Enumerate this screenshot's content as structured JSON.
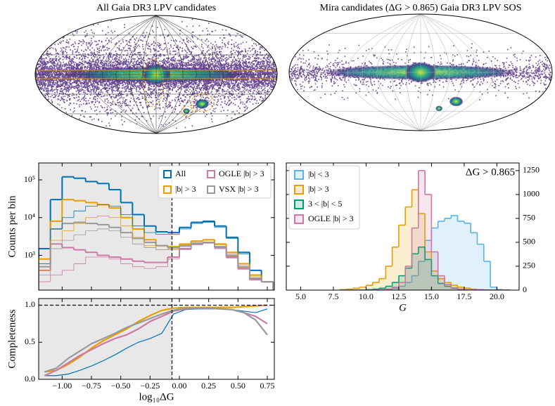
{
  "chart_data": [
    {
      "type": "skymap",
      "title": "All Gaia DR3 LPV candidates"
    },
    {
      "type": "skymap",
      "title": "Mira candidates (ΔG > 0.865) Gaia DR3 LPV SOS"
    },
    {
      "type": "histogram",
      "ylabel": "Counts per bin",
      "log_y": true,
      "legend": "upper right",
      "shaded_below_threshold": true,
      "threshold": -0.063,
      "xlim": [
        -1.2,
        0.81
      ],
      "ylim": [
        120,
        280000
      ],
      "yticks": [
        {
          "value": 1000,
          "label": "10³"
        },
        {
          "value": 10000,
          "label": "10⁴"
        },
        {
          "value": 100000,
          "label": "10⁵"
        }
      ],
      "bins": [
        -1.2,
        -1.1,
        -1.0,
        -0.9,
        -0.8,
        -0.7,
        -0.6,
        -0.5,
        -0.4,
        -0.3,
        -0.2,
        -0.1,
        0.0,
        0.1,
        0.2,
        0.3,
        0.4,
        0.5,
        0.6,
        0.7,
        0.8
      ],
      "series": [
        {
          "name": "All",
          "color": "#0072b2",
          "linewidth": 2,
          "values": [
            1500,
            30000,
            120000,
            110000,
            90000,
            80000,
            55000,
            25000,
            12000,
            6000,
            4200,
            4000,
            5500,
            7500,
            8000,
            6000,
            3000,
            1200,
            400,
            200
          ]
        },
        {
          "name": "|b| > 3",
          "color": "#e69f00",
          "linewidth": 2,
          "values": [
            800,
            8000,
            30000,
            28000,
            25000,
            22000,
            18000,
            10000,
            5000,
            2600,
            1800,
            1700,
            2000,
            2400,
            2600,
            2000,
            1200,
            600,
            300,
            200
          ]
        },
        {
          "name": "OGLE |b| > 3",
          "color": "#cc79a7",
          "linewidth": 2,
          "values": [
            400,
            2000,
            1600,
            1400,
            1200,
            1000,
            900,
            800,
            700,
            650,
            650,
            900,
            1500,
            2000,
            2200,
            1600,
            900,
            450,
            230,
            200
          ]
        },
        {
          "name": "VSX |b| > 3",
          "color": "#999999",
          "linewidth": 2,
          "values": [
            500,
            5000,
            7000,
            7500,
            7000,
            6500,
            5500,
            4000,
            2800,
            2200,
            1800,
            1600,
            1800,
            2100,
            2200,
            1700,
            1000,
            500,
            250,
            200
          ]
        },
        {
          "color": "#0072b2",
          "linewidth": 0.8,
          "values": [
            600,
            5000,
            10000,
            15000,
            20000,
            22000,
            20000,
            12000,
            6000,
            4000,
            3600,
            3600,
            5000,
            7000,
            7500,
            5500,
            2800,
            1100,
            400,
            200
          ]
        },
        {
          "color": "#e69f00",
          "linewidth": 0.8,
          "values": [
            400,
            2500,
            4500,
            7000,
            10000,
            11000,
            10000,
            6000,
            3000,
            1800,
            1400,
            1500,
            1900,
            2300,
            2500,
            1900,
            1100,
            550,
            280,
            200
          ]
        },
        {
          "color": "#cc79a7",
          "linewidth": 0.8,
          "values": [
            200,
            300,
            400,
            600,
            900,
            900,
            800,
            600,
            500,
            450,
            500,
            800,
            1400,
            1900,
            2100,
            1500,
            850,
            420,
            220,
            200
          ]
        },
        {
          "color": "#999999",
          "linewidth": 0.8,
          "values": [
            300,
            1500,
            2500,
            3500,
            4500,
            5000,
            4500,
            3000,
            2000,
            1600,
            1400,
            1400,
            1700,
            2000,
            2100,
            1600,
            950,
            480,
            240,
            200
          ]
        }
      ]
    },
    {
      "type": "line",
      "ylabel": "Completeness",
      "xlabel": "log₁₀ΔG",
      "shaded_below_threshold": true,
      "threshold": -0.063,
      "reference_line": 1.0,
      "xlim": [
        -1.2,
        0.81
      ],
      "ylim": [
        0,
        1.09
      ],
      "xticks": [
        {
          "value": -1.0,
          "label": "−1.00"
        },
        {
          "value": -0.75,
          "label": "−0.75"
        },
        {
          "value": -0.5,
          "label": "−0.50"
        },
        {
          "value": -0.25,
          "label": "−0.25"
        },
        {
          "value": 0.0,
          "label": "0.00"
        },
        {
          "value": 0.25,
          "label": "0.25"
        },
        {
          "value": 0.5,
          "label": "0.50"
        },
        {
          "value": 0.75,
          "label": "0.75"
        }
      ],
      "yticks": [
        {
          "value": 0.0,
          "label": "0.0"
        },
        0.5,
        {
          "value": 1.0,
          "label": "1.0"
        }
      ],
      "x": [
        -1.15,
        -1.05,
        -0.95,
        -0.85,
        -0.75,
        -0.65,
        -0.55,
        -0.45,
        -0.35,
        -0.25,
        -0.15,
        -0.05,
        0.05,
        0.15,
        0.25,
        0.35,
        0.45,
        0.55,
        0.65,
        0.75
      ],
      "series": [
        {
          "color": "#e69f00",
          "values": [
            0.1,
            0.12,
            0.2,
            0.3,
            0.42,
            0.52,
            0.6,
            0.68,
            0.78,
            0.86,
            0.93,
            0.96,
            0.97,
            0.97,
            0.97,
            0.97,
            0.97,
            0.98,
            0.99,
            1.0
          ]
        },
        {
          "color": "#0072b2",
          "values": [
            0.05,
            0.05,
            0.07,
            0.12,
            0.18,
            0.25,
            0.33,
            0.42,
            0.5,
            0.55,
            0.62,
            0.88,
            0.94,
            0.95,
            0.95,
            0.95,
            0.94,
            0.92,
            0.9,
            0.95
          ]
        },
        {
          "color": "#cc79a7",
          "values": [
            0.05,
            0.12,
            0.22,
            0.32,
            0.4,
            0.48,
            0.55,
            0.6,
            0.68,
            0.78,
            0.85,
            0.92,
            0.95,
            0.96,
            0.96,
            0.95,
            0.94,
            0.9,
            0.85,
            0.75
          ]
        },
        {
          "color": "#999999",
          "values": [
            0.1,
            0.15,
            0.28,
            0.38,
            0.48,
            0.55,
            0.62,
            0.7,
            0.76,
            0.82,
            0.88,
            0.93,
            0.96,
            0.96,
            0.96,
            0.95,
            0.94,
            0.9,
            0.8,
            0.6
          ]
        }
      ]
    },
    {
      "type": "histogram",
      "xlabel": "G",
      "annotation": "ΔG > 0.865",
      "legend": "upper left",
      "yaxis_side": "right",
      "filled": true,
      "xlim": [
        3.9,
        21.7
      ],
      "ylim": [
        0,
        1330
      ],
      "xticks": [
        {
          "value": 5.0,
          "label": "5.0"
        },
        7.5,
        {
          "value": 10.0,
          "label": "10.0"
        },
        12.5,
        {
          "value": 15.0,
          "label": "15.0"
        },
        17.5,
        {
          "value": 20.0,
          "label": "20.0"
        }
      ],
      "yticks": [
        0,
        250,
        500,
        750,
        1000,
        1250
      ],
      "bins": [
        8.0,
        8.5,
        9.0,
        9.5,
        10.0,
        10.5,
        11.0,
        11.5,
        12.0,
        12.5,
        13.0,
        13.5,
        14.0,
        14.5,
        15.0,
        15.5,
        16.0,
        16.5,
        17.0,
        17.5,
        18.0,
        18.5,
        19.0,
        19.5,
        20.0,
        20.5,
        21.0
      ],
      "series": [
        {
          "name": "|b| < 3",
          "color": "#56b4e9",
          "values": [
            0,
            0,
            0,
            0,
            0,
            2,
            5,
            10,
            20,
            40,
            80,
            150,
            300,
            520,
            650,
            720,
            750,
            780,
            720,
            700,
            600,
            480,
            300,
            30,
            5,
            0
          ]
        },
        {
          "name": "|b| > 3",
          "color": "#e69f00",
          "values": [
            5,
            10,
            20,
            30,
            50,
            80,
            120,
            250,
            450,
            680,
            870,
            1050,
            800,
            400,
            200,
            120,
            80,
            50,
            30,
            20,
            10,
            5,
            2,
            0,
            0,
            0
          ]
        },
        {
          "name": "3 < |b| < 5",
          "color": "#009e73",
          "values": [
            0,
            0,
            0,
            0,
            5,
            10,
            20,
            40,
            80,
            150,
            230,
            380,
            450,
            320,
            150,
            70,
            40,
            20,
            10,
            5,
            2,
            0,
            0,
            0,
            0,
            0
          ]
        },
        {
          "name": "OGLE |b| > 3",
          "color": "#cc79a7",
          "values": [
            0,
            0,
            0,
            0,
            0,
            2,
            5,
            10,
            30,
            80,
            250,
            650,
            1250,
            1000,
            400,
            150,
            60,
            25,
            10,
            5,
            2,
            0,
            0,
            0,
            0,
            0
          ]
        }
      ]
    }
  ]
}
